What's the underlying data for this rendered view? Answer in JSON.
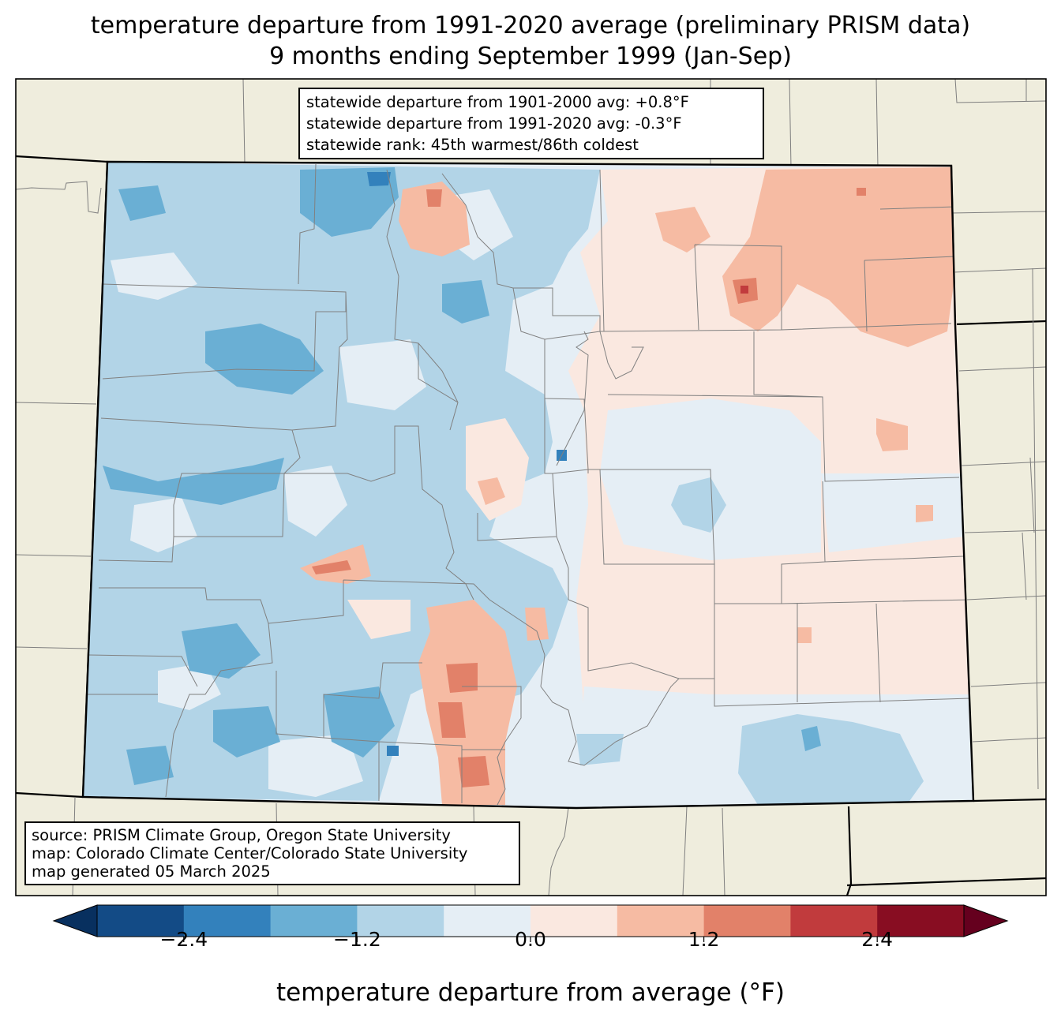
{
  "title": {
    "line1": "temperature departure from 1991-2020 average (preliminary PRISM data)",
    "line2": "9 months ending September 1999 (Jan-Sep)"
  },
  "stats_box": {
    "line1": "statewide departure from 1901-2000 avg: +0.8°F",
    "line2": "statewide departure from 1991-2020 avg: -0.3°F",
    "line3": "statewide rank: 45th warmest/86th coldest"
  },
  "source_box": {
    "line1": "source: PRISM Climate Group, Oregon State University",
    "line2": "map: Colorado Climate Center/Colorado State University",
    "line3": "map generated 05 March 2025"
  },
  "colorbar": {
    "label": "temperature departure from average (°F)",
    "ticks": [
      "−2.4",
      "−1.2",
      "0.0",
      "1.2",
      "2.4"
    ],
    "tick_values": [
      -2.4,
      -1.2,
      0.0,
      1.2,
      2.4
    ],
    "bounds": [
      -3.0,
      3.0
    ],
    "bin_width": 0.6,
    "colors": [
      "#134b86",
      "#3381bc",
      "#6aafd4",
      "#b2d4e7",
      "#e5eef5",
      "#fae8e0",
      "#f6bba3",
      "#e28169",
      "#c13b3d",
      "#880d22"
    ],
    "under_color": "#08305f",
    "over_color": "#65001e"
  },
  "map": {
    "background_color": "#efeddd",
    "state_border_color": "#000000",
    "county_line_color": "#808080"
  }
}
